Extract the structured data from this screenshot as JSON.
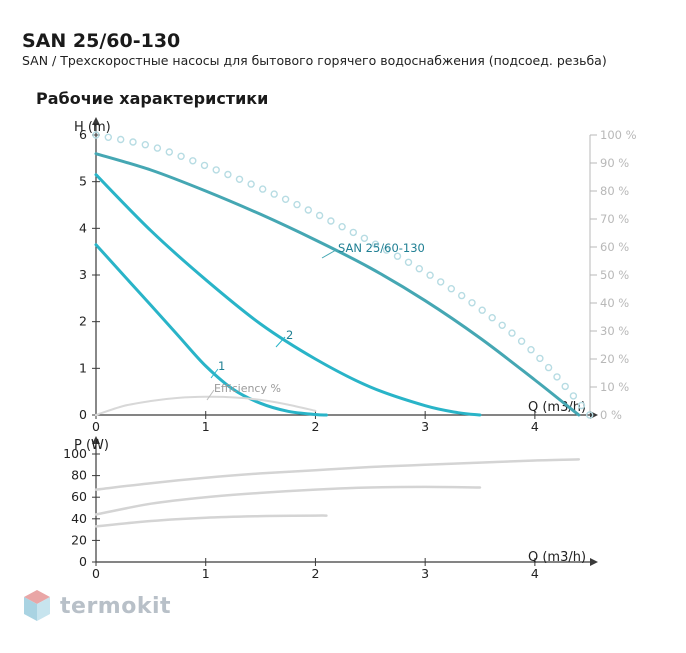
{
  "header": {
    "title": "SAN 25/60-130",
    "subtitle": "SAN / Трехскоростные насосы для бытового горячего водоснабжения (подсоед. резьба)",
    "section_title": "Рабочие характеристики"
  },
  "brand": {
    "name": "termokit"
  },
  "colors": {
    "curve_main": "#45a7b3",
    "curve_secondary": "#29b4c8",
    "efficiency": "#d8d8d8",
    "efficiency_dots": "#b7dce3",
    "axis": "#3a3a3a",
    "axis_right": "#b8b8b8",
    "power": "#d4d4d4",
    "label": "#1f7f93"
  },
  "chart_data": [
    {
      "type": "line",
      "xlabel": "Q (m3/h)",
      "ylabel": "H (m)",
      "y2label": "",
      "xlim": [
        0,
        4.5
      ],
      "ylim": [
        0,
        6
      ],
      "y2lim": [
        0,
        100
      ],
      "xticks": [
        "0",
        "1",
        "2",
        "3",
        "4"
      ],
      "yticks": [
        "0",
        "1",
        "2",
        "3",
        "4",
        "5",
        "6"
      ],
      "y2ticks": [
        "0 %",
        "10 %",
        "20 %",
        "30 %",
        "40 %",
        "50 %",
        "60 %",
        "70 %",
        "80 %",
        "90 %",
        "100 %"
      ],
      "grid": false,
      "series": [
        {
          "name": "SAN 25/60-130",
          "x": [
            0,
            0.5,
            1,
            1.5,
            2,
            2.5,
            3,
            3.5,
            4,
            4.4
          ],
          "y": [
            5.6,
            5.25,
            4.8,
            4.3,
            3.75,
            3.15,
            2.45,
            1.65,
            0.75,
            0
          ]
        },
        {
          "name": "2",
          "x": [
            0,
            0.5,
            1,
            1.5,
            2,
            2.5,
            3,
            3.3,
            3.5
          ],
          "y": [
            5.15,
            3.95,
            2.9,
            1.95,
            1.2,
            0.6,
            0.2,
            0.05,
            0
          ]
        },
        {
          "name": "1",
          "x": [
            0,
            0.25,
            0.5,
            0.75,
            1,
            1.25,
            1.5,
            1.75,
            2,
            2.1
          ],
          "y": [
            3.65,
            3.0,
            2.35,
            1.7,
            1.05,
            0.55,
            0.25,
            0.08,
            0.01,
            0
          ]
        },
        {
          "name": "Efficiency %",
          "axis": "y2",
          "x": [
            0,
            0.25,
            0.5,
            0.75,
            1,
            1.25,
            1.5,
            1.75,
            2
          ],
          "y": [
            0,
            3.2,
            5.0,
            6.1,
            6.5,
            6.3,
            5.4,
            3.7,
            1.5
          ]
        },
        {
          "name": "",
          "axis": "y2",
          "style": "dotted",
          "x": [
            0,
            0.5,
            1,
            1.5,
            2,
            2.5,
            3,
            3.5,
            4,
            4.5
          ],
          "y": [
            100,
            96,
            89,
            81,
            72,
            62,
            51,
            38,
            22,
            0
          ]
        }
      ],
      "annotations": [
        "SAN 25/60-130",
        "2",
        "1",
        "Efficiency %"
      ]
    },
    {
      "type": "line",
      "xlabel": "Q (m3/h)",
      "ylabel": "P (W)",
      "xlim": [
        0,
        4.5
      ],
      "ylim": [
        0,
        100
      ],
      "xticks": [
        "0",
        "1",
        "2",
        "3",
        "4"
      ],
      "yticks": [
        "0",
        "20",
        "40",
        "60",
        "80",
        "100"
      ],
      "grid": false,
      "series": [
        {
          "name": "",
          "x": [
            0,
            0.5,
            1,
            1.5,
            2,
            2.5,
            3,
            3.5,
            4,
            4.4
          ],
          "y": [
            67,
            73,
            78,
            82,
            85,
            88,
            90,
            92,
            94,
            95
          ]
        },
        {
          "name": "",
          "x": [
            0,
            0.5,
            1,
            1.5,
            2,
            2.5,
            3,
            3.5
          ],
          "y": [
            44,
            54,
            60,
            64,
            67,
            69,
            69.5,
            69
          ]
        },
        {
          "name": "",
          "x": [
            0,
            0.5,
            1,
            1.5,
            2,
            2.1
          ],
          "y": [
            33,
            38,
            41,
            42.5,
            43,
            43
          ]
        }
      ]
    }
  ]
}
